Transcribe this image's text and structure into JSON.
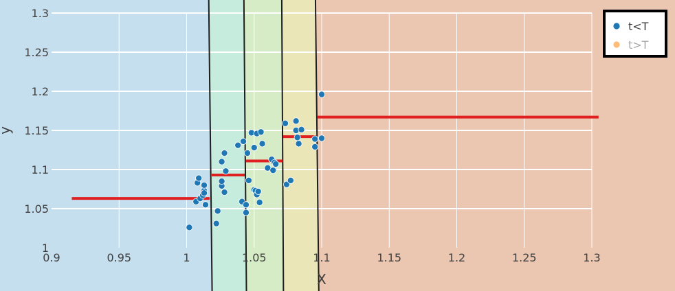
{
  "chart_data": {
    "type": "scatter",
    "xlabel": "X",
    "ylabel": "y",
    "xlim": [
      0.9,
      1.3
    ],
    "ylim": [
      1.0,
      1.3
    ],
    "x_ticks": [
      0.9,
      0.95,
      1,
      1.05,
      1.1,
      1.15,
      1.2,
      1.25,
      1.3
    ],
    "x_tick_labels": [
      "0.9",
      "0.95",
      "1",
      "1.05",
      "1.1",
      "1.15",
      "1.2",
      "1.25",
      "1.3"
    ],
    "y_ticks": [
      1.0,
      1.05,
      1.1,
      1.15,
      1.2,
      1.25,
      1.3
    ],
    "y_tick_labels": [
      "1",
      "1.05",
      "1.1",
      "1.15",
      "1.2",
      "1.25",
      "1.3"
    ],
    "grid": true,
    "legend_position": "top-right",
    "legend": [
      {
        "label": "t<T",
        "color": "#1f77b4",
        "active": true
      },
      {
        "label": "t>T",
        "color": "#ffbb78",
        "active": false
      }
    ],
    "regions": [
      {
        "x_start_bottom": null,
        "x_end_top": 1.0165,
        "x_end_bottom": 1.0185,
        "color": "#c6dfee"
      },
      {
        "x_start_top": 1.0165,
        "x_start_bottom": 1.0185,
        "x_end_top": 1.0425,
        "x_end_bottom": 1.044,
        "color": "#c5ecdc"
      },
      {
        "x_start_top": 1.0425,
        "x_start_bottom": 1.044,
        "x_end_top": 1.0705,
        "x_end_bottom": 1.0715,
        "color": "#d6ecc6"
      },
      {
        "x_start_top": 1.0705,
        "x_start_bottom": 1.0715,
        "x_end_top": 1.0955,
        "x_end_bottom": 1.0975,
        "color": "#ebe6b8"
      },
      {
        "x_start_top": 1.0955,
        "x_start_bottom": 1.0975,
        "x_end_top": null,
        "x_end_bottom": null,
        "color": "#ebc6b0"
      }
    ],
    "step_segments": [
      {
        "x0": 0.915,
        "x1": 1.017,
        "y": 1.063
      },
      {
        "x0": 1.018,
        "x1": 1.043,
        "y": 1.093
      },
      {
        "x0": 1.044,
        "x1": 1.071,
        "y": 1.111
      },
      {
        "x0": 1.0715,
        "x1": 1.096,
        "y": 1.142
      },
      {
        "x0": 1.097,
        "x1": 1.305,
        "y": 1.167
      }
    ],
    "step_color": "#e02020",
    "series": [
      {
        "name": "t<T",
        "color": "#1f77b4",
        "points": [
          [
            1.002,
            1.026
          ],
          [
            1.007,
            1.059
          ],
          [
            1.008,
            1.083
          ],
          [
            1.009,
            1.089
          ],
          [
            1.01,
            1.063
          ],
          [
            1.012,
            1.067
          ],
          [
            1.013,
            1.073
          ],
          [
            1.013,
            1.08
          ],
          [
            1.013,
            1.07
          ],
          [
            1.014,
            1.055
          ],
          [
            1.022,
            1.031
          ],
          [
            1.023,
            1.047
          ],
          [
            1.026,
            1.079
          ],
          [
            1.026,
            1.085
          ],
          [
            1.026,
            1.11
          ],
          [
            1.028,
            1.071
          ],
          [
            1.028,
            1.121
          ],
          [
            1.029,
            1.098
          ],
          [
            1.038,
            1.131
          ],
          [
            1.041,
            1.059
          ],
          [
            1.042,
            1.136
          ],
          [
            1.044,
            1.055
          ],
          [
            1.044,
            1.045
          ],
          [
            1.045,
            1.121
          ],
          [
            1.046,
            1.086
          ],
          [
            1.048,
            1.147
          ],
          [
            1.05,
            1.074
          ],
          [
            1.05,
            1.128
          ],
          [
            1.051,
            1.073
          ],
          [
            1.052,
            1.068
          ],
          [
            1.052,
            1.146
          ],
          [
            1.053,
            1.072
          ],
          [
            1.054,
            1.058
          ],
          [
            1.055,
            1.148
          ],
          [
            1.056,
            1.133
          ],
          [
            1.06,
            1.102
          ],
          [
            1.063,
            1.113
          ],
          [
            1.064,
            1.099
          ],
          [
            1.065,
            1.109
          ],
          [
            1.066,
            1.107
          ],
          [
            1.073,
            1.159
          ],
          [
            1.074,
            1.081
          ],
          [
            1.077,
            1.086
          ],
          [
            1.081,
            1.162
          ],
          [
            1.081,
            1.15
          ],
          [
            1.082,
            1.141
          ],
          [
            1.083,
            1.133
          ],
          [
            1.085,
            1.151
          ],
          [
            1.095,
            1.139
          ],
          [
            1.095,
            1.129
          ],
          [
            1.1,
            1.196
          ],
          [
            1.1,
            1.14
          ]
        ]
      }
    ]
  }
}
